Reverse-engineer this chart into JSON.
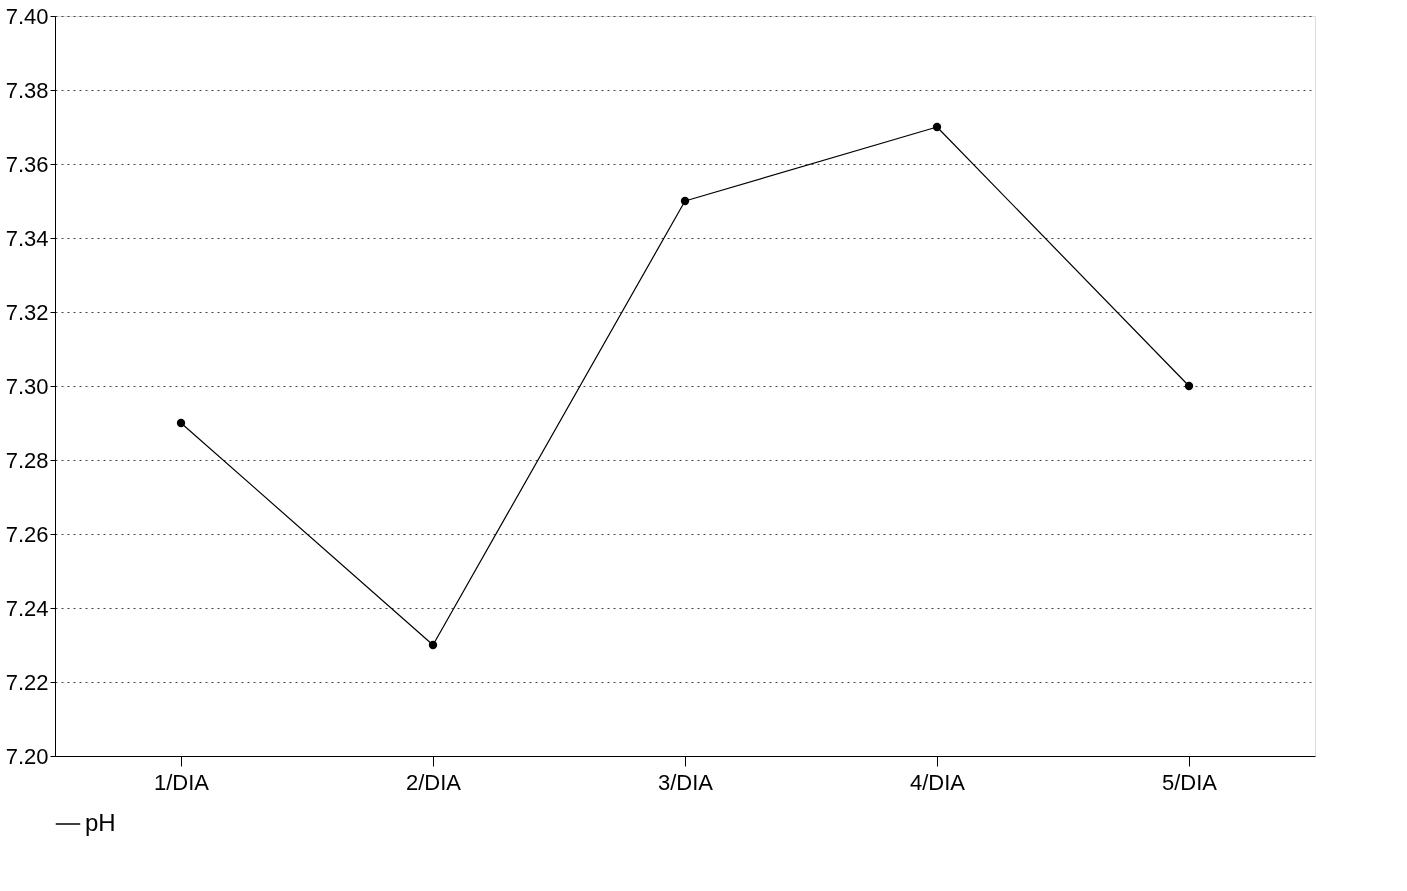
{
  "chart_data": {
    "type": "line",
    "categories": [
      "1/DIA",
      "2/DIA",
      "3/DIA",
      "4/DIA",
      "5/DIA"
    ],
    "series": [
      {
        "name": "pH",
        "color": "#000000",
        "values": [
          7.29,
          7.23,
          7.35,
          7.37,
          7.3
        ]
      }
    ],
    "ylim": [
      7.2,
      7.4
    ],
    "yticks": [
      {
        "value": 7.2,
        "label": "7.20"
      },
      {
        "value": 7.22,
        "label": "7.22"
      },
      {
        "value": 7.24,
        "label": "7.24"
      },
      {
        "value": 7.26,
        "label": "7.26"
      },
      {
        "value": 7.28,
        "label": "7.28"
      },
      {
        "value": 7.3,
        "label": "7.30"
      },
      {
        "value": 7.32,
        "label": "7.32"
      },
      {
        "value": 7.34,
        "label": "7.34"
      },
      {
        "value": 7.36,
        "label": "7.36"
      },
      {
        "value": 7.38,
        "label": "7.38"
      },
      {
        "value": 7.4,
        "label": "7.40"
      }
    ],
    "grid": "y",
    "legend": "bottom",
    "marker": "circle",
    "line_style": "solid"
  }
}
